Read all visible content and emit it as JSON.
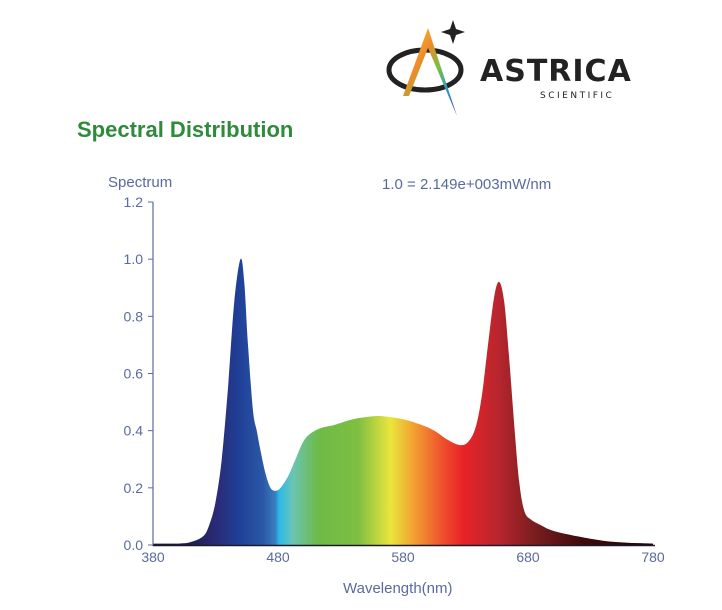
{
  "logo": {
    "text": "ASTRICA",
    "subtext": "SCIENTIFIC"
  },
  "title": "Spectral Distribution",
  "chart_data": {
    "type": "area",
    "ylabel": "Spectrum",
    "xlabel": "Wavelength(nm)",
    "annotation": "1.0 = 2.149e+003mW/nm",
    "xlim": [
      380,
      780
    ],
    "ylim": [
      0,
      1.2
    ],
    "xticks": [
      "380",
      "480",
      "580",
      "680",
      "780"
    ],
    "yticks": [
      "0.0",
      "0.2",
      "0.4",
      "0.6",
      "0.8",
      "1.0",
      "1.2"
    ],
    "grid": false,
    "fill": "visible-spectrum gradient",
    "x": [
      380,
      400,
      410,
      420,
      425,
      430,
      435,
      440,
      445,
      450,
      453,
      456,
      460,
      463,
      466,
      470,
      474,
      478,
      482,
      488,
      494,
      500,
      506,
      515,
      525,
      540,
      555,
      565,
      580,
      595,
      605,
      615,
      625,
      632,
      638,
      643,
      648,
      653,
      657,
      661,
      665,
      669,
      673,
      677,
      682,
      690,
      700,
      720,
      740,
      760,
      780
    ],
    "y": [
      0.005,
      0.005,
      0.01,
      0.03,
      0.07,
      0.15,
      0.3,
      0.55,
      0.85,
      1.0,
      0.92,
      0.7,
      0.47,
      0.4,
      0.33,
      0.25,
      0.2,
      0.19,
      0.2,
      0.24,
      0.3,
      0.36,
      0.39,
      0.41,
      0.42,
      0.44,
      0.45,
      0.45,
      0.44,
      0.42,
      0.4,
      0.37,
      0.35,
      0.36,
      0.41,
      0.52,
      0.7,
      0.87,
      0.92,
      0.85,
      0.65,
      0.42,
      0.22,
      0.12,
      0.09,
      0.07,
      0.05,
      0.03,
      0.015,
      0.008,
      0.005
    ]
  }
}
